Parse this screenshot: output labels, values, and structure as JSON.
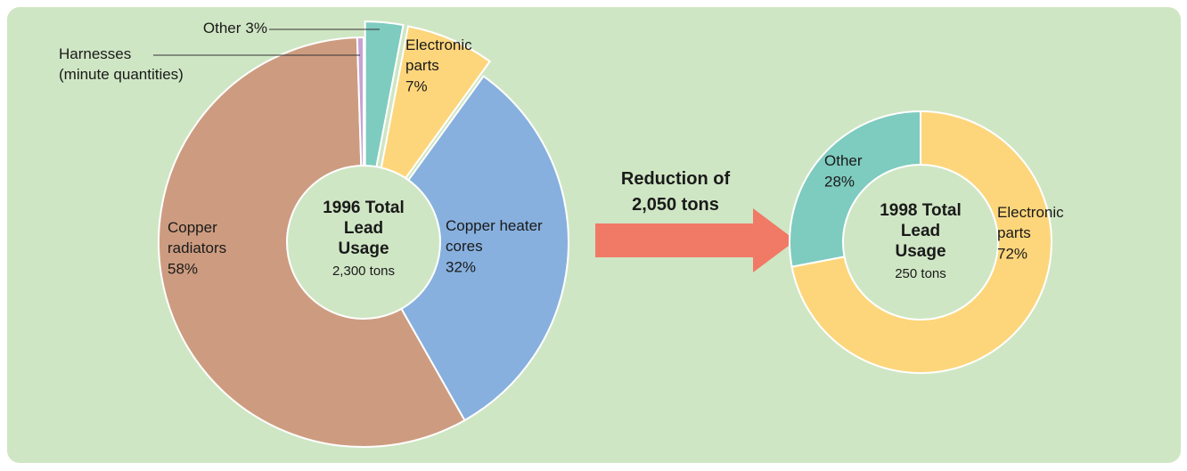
{
  "chart_data": [
    {
      "type": "pie",
      "title": "1996 Total Lead Usage",
      "subtitle": "2,300 tons",
      "labels": [
        "Other",
        "Electronic parts",
        "Copper heater cores",
        "Copper radiators",
        "Harnesses (minute quantities)"
      ],
      "values": [
        3,
        7,
        32,
        58,
        0.5
      ],
      "value_labels": [
        "3%",
        "7%",
        "32%",
        "58%",
        null
      ],
      "colors": [
        "#7ecbbf",
        "#fdd67c",
        "#87b0de",
        "#cd9c80",
        "#c6a2d4"
      ],
      "exploded": [
        true,
        true,
        false,
        false,
        false
      ]
    },
    {
      "type": "pie",
      "title": "1998 Total Lead Usage",
      "subtitle": "250 tons",
      "labels": [
        "Electronic parts",
        "Other"
      ],
      "values": [
        72,
        28
      ],
      "value_labels": [
        "72%",
        "28%"
      ],
      "colors": [
        "#fdd67c",
        "#7ecbbf"
      ],
      "exploded": [
        false,
        false
      ]
    }
  ],
  "annotation": "Reduction of 2,050 tons"
}
